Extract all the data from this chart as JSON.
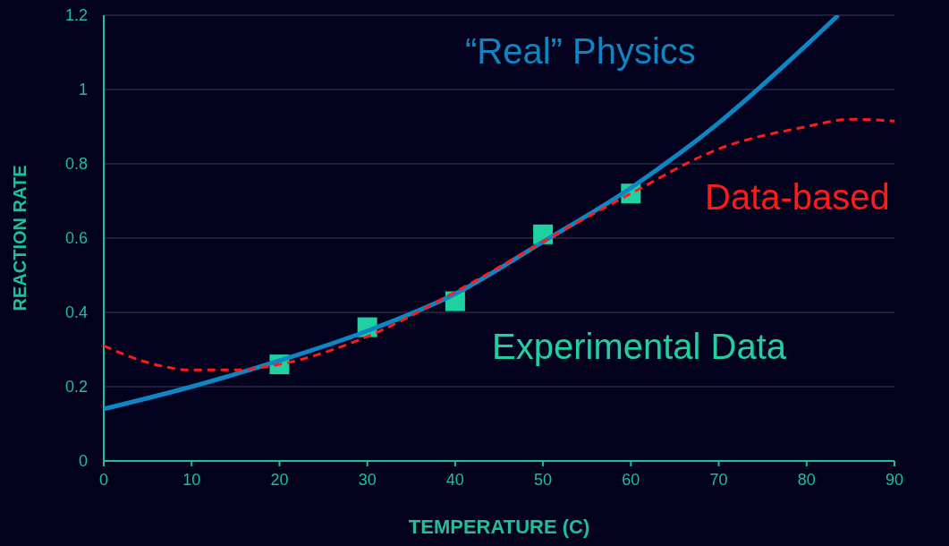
{
  "chart_data": {
    "type": "line",
    "xlabel": "TEMPERATURE (C)",
    "ylabel": "REACTION RATE",
    "xlim": [
      0,
      90
    ],
    "xticks": [
      0,
      10,
      20,
      30,
      40,
      50,
      60,
      70,
      80,
      90
    ],
    "ylim": [
      0,
      1.2
    ],
    "yticks": [
      0,
      0.2,
      0.4,
      0.6,
      0.8,
      1,
      1.2
    ],
    "grid": "y",
    "series": [
      {
        "name": "“Real” Physics",
        "color": "#0e86c4",
        "line_style": "solid",
        "x": [
          0,
          10,
          20,
          30,
          40,
          50,
          60,
          70,
          80,
          83.6
        ],
        "values": [
          0.14,
          0.2,
          0.27,
          0.35,
          0.45,
          0.59,
          0.735,
          0.91,
          1.12,
          1.2
        ]
      },
      {
        "name": "Data-based",
        "color": "#ff1a1a",
        "line_style": "dashed",
        "x": [
          0,
          5,
          10,
          15,
          20,
          30,
          40,
          50,
          60,
          70,
          80,
          85,
          90
        ],
        "values": [
          0.31,
          0.265,
          0.245,
          0.245,
          0.26,
          0.335,
          0.455,
          0.59,
          0.72,
          0.84,
          0.9,
          0.92,
          0.915
        ]
      },
      {
        "name": "Experimental Data",
        "type": "scatter",
        "color": "#1fd1a0",
        "marker": "square",
        "x": [
          20,
          30,
          40,
          50,
          60
        ],
        "values": [
          0.26,
          0.36,
          0.43,
          0.61,
          0.72
        ]
      }
    ]
  }
}
